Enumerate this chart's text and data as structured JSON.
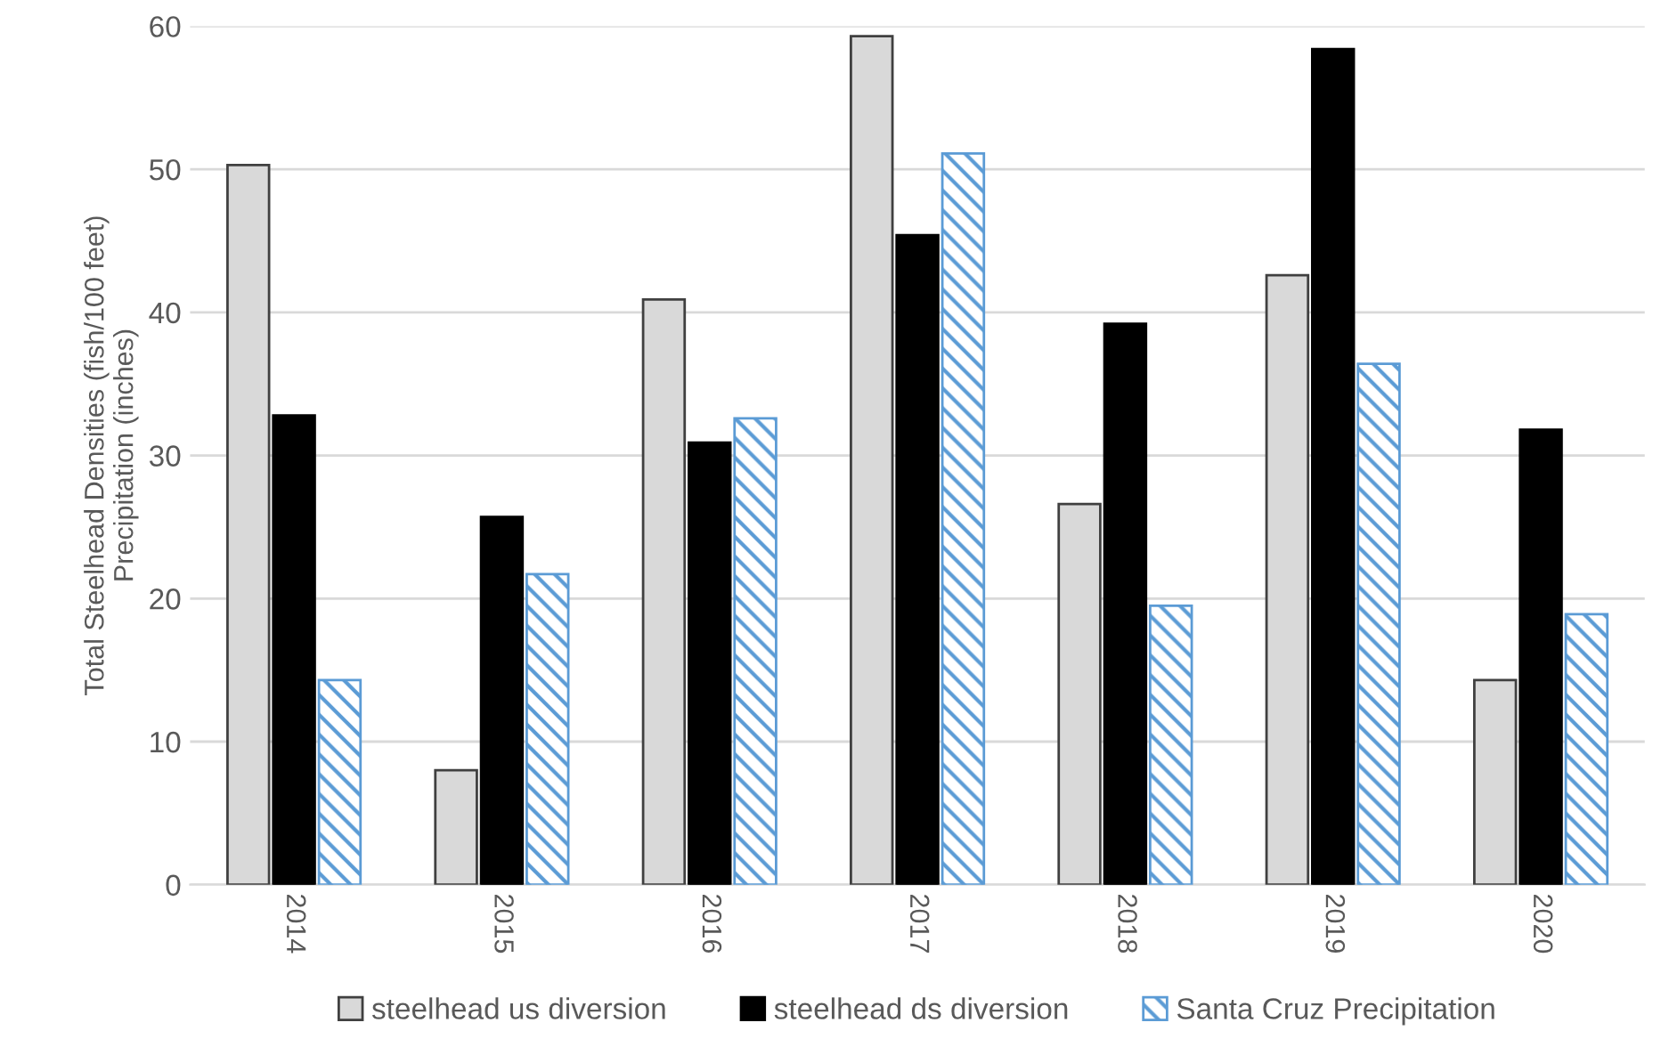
{
  "chart_data": {
    "type": "bar",
    "ylabel": "Total Steelhead Densities (fish/100 feet)\nPrecipitation (inches)",
    "categories": [
      "2014",
      "2015",
      "2016",
      "2017",
      "2018",
      "2019",
      "2020"
    ],
    "series": [
      {
        "name": "steelhead us diversion",
        "color": "#d9d9d9",
        "values": [
          50.3,
          8.0,
          40.9,
          59.3,
          26.6,
          42.6,
          14.3
        ]
      },
      {
        "name": "steelhead ds diversion",
        "color": "#000000",
        "values": [
          32.8,
          25.7,
          30.9,
          45.4,
          39.2,
          58.4,
          31.8
        ]
      },
      {
        "name": "Santa Cruz Precipitation",
        "color": "#5b9bd5",
        "values": [
          14.3,
          21.7,
          32.6,
          51.1,
          19.5,
          36.4,
          18.9
        ]
      }
    ],
    "ylim": [
      0,
      60
    ],
    "yticks": [
      0,
      10,
      20,
      30,
      40,
      50,
      60
    ],
    "grid": "y",
    "legend": "bottom"
  }
}
